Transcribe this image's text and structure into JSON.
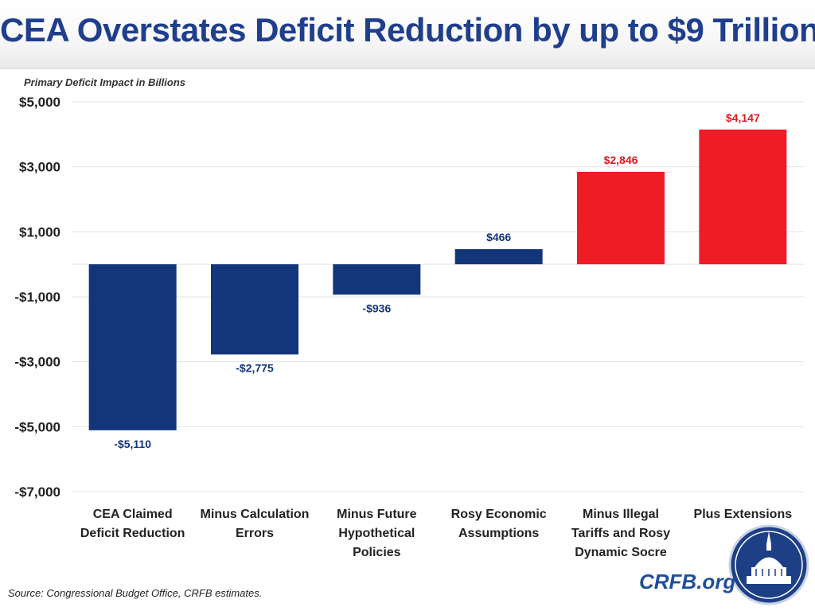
{
  "header": {
    "title": "CEA Overstates Deficit Reduction by up to $9 Trillion"
  },
  "footer": {
    "source": "Source: Congressional Budget Office, CRFB estimates.",
    "brand": "CRFB.org"
  },
  "chart_data": {
    "type": "bar",
    "ylabel": "Primary Deficit Impact in Billions",
    "ylim": [
      -7000,
      5000
    ],
    "yticks": [
      5000,
      3000,
      1000,
      -1000,
      -3000,
      -5000,
      -7000
    ],
    "ytick_labels": [
      "$5,000",
      "$3,000",
      "$1,000",
      "-$1,000",
      "-$3,000",
      "-$5,000",
      "-$7,000"
    ],
    "grid": true,
    "categories": [
      [
        "CEA Claimed",
        "Deficit Reduction"
      ],
      [
        "Minus Calculation",
        "Errors"
      ],
      [
        "Minus Future",
        "Hypothetical",
        "Policies"
      ],
      [
        "Rosy Economic",
        "Assumptions"
      ],
      [
        "Minus Illegal",
        "Tariffs and Rosy",
        "Dynamic Socre"
      ],
      [
        "Plus Extensions"
      ]
    ],
    "values": [
      -5110,
      -2775,
      -936,
      466,
      2846,
      4147
    ],
    "data_labels": [
      "-$5,110",
      "-$2,775",
      "-$936",
      "$466",
      "$2,846",
      "$4,147"
    ],
    "colors": [
      "#13357a",
      "#13357a",
      "#13357a",
      "#13357a",
      "#ee1c25",
      "#ee1c25"
    ],
    "label_colors": [
      "#13357a",
      "#13357a",
      "#13357a",
      "#13357a",
      "#dd1a22",
      "#dd1a22"
    ]
  }
}
